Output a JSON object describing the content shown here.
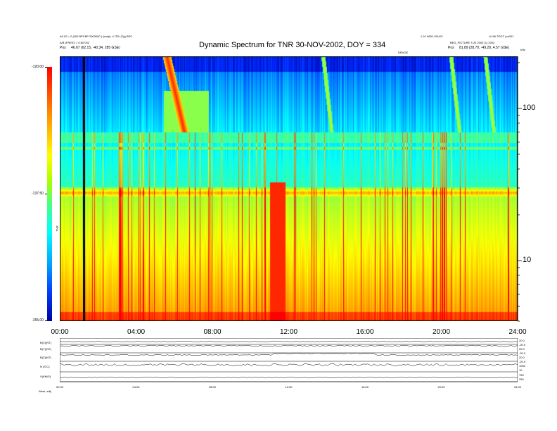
{
  "header": {
    "left_line1": "A0.02 = 2 (000 BPCBP 2003000 ) (tcofy): 4 ITD/ (Tg) BPC",
    "left_line2": "A/B (FREE2 = 0.60 002",
    "left_pos_label": "Pos",
    "left_pos_value": "46.67 (62.15, -40.34, 285 GSE)",
    "right_line1": "1.10 WED 001/02",
    "right_line2": "BEG_PICTURE TUE 2003 (1) 2002",
    "right_pos_label": "Pos",
    "right_pos_value": "81.89 (28.70, -49.29, 4.57 GSE)",
    "right_corner": "L0.96 TOGT (co001",
    "mid_label": "DRVOE",
    "units_top": "kHz"
  },
  "chart_data": {
    "type": "heatmap",
    "title": "Dynamic Spectrum for TNR 30-NOV-2002, DOY = 334",
    "x_ticks": [
      "00:00",
      "04:00",
      "08:00",
      "12:00",
      "16:00",
      "20:00",
      "24:00"
    ],
    "xlim": [
      0,
      24
    ],
    "y_scale": "log",
    "ylim": [
      4,
      220
    ],
    "y_ticks": [
      "100",
      "10"
    ],
    "y_tick_values": [
      100,
      10
    ],
    "colorbar": {
      "ticks": [
        "-120.00",
        "-137.50",
        "-155.00"
      ],
      "tick_values": [
        -120,
        -137.5,
        -155
      ],
      "label": "TNR",
      "range": [
        -155,
        -120
      ]
    },
    "features": {
      "noise_band_frequency_khz": 28,
      "upper_band_frequency_khz": 55,
      "burst_hours": [
        5.6,
        22.3
      ],
      "bright_interval_hours": [
        11.0,
        11.8
      ],
      "data_gap_hour": 1.2
    }
  },
  "bottom_panel": {
    "row_labels": [
      "B(X)(NT)",
      "B(Y)(NT)",
      "B(Z)(NT)",
      "N (/CC)",
      "V(KM/S)"
    ],
    "right_scale": [
      [
        "20.0",
        "-20.0"
      ],
      [
        "20.0",
        "-20.0"
      ],
      [
        "20.0",
        "-20.0"
      ],
      [
        "1000",
        "10"
      ],
      [
        "750",
        "250"
      ]
    ],
    "x_ticks": [
      "00:00",
      "04:00",
      "08:00",
      "12:00",
      "16:00",
      "20:00",
      "24:00"
    ],
    "footer_left": "Wsto.  sdfj"
  }
}
